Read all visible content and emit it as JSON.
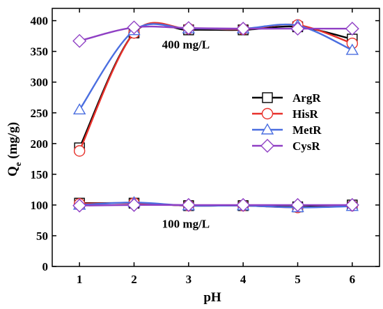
{
  "chart_data": {
    "type": "line",
    "xlabel": "pH",
    "ylabel": "Qe (mg/g)",
    "ylabel_main": "Q",
    "ylabel_sub": "e",
    "ylabel_unit": " (mg/g)",
    "xlim": [
      0.5,
      6.5
    ],
    "ylim": [
      0,
      420
    ],
    "xticks": [
      1,
      2,
      3,
      4,
      5,
      6
    ],
    "yticks": [
      0,
      50,
      100,
      150,
      200,
      250,
      300,
      350,
      400
    ],
    "grid": false,
    "legend_position": "right",
    "annotations": [
      {
        "text": "400 mg/L",
        "x": 2.95,
        "y": 355
      },
      {
        "text": "100 mg/L",
        "x": 2.95,
        "y": 63
      }
    ],
    "series": [
      {
        "name": "ArgR",
        "color": "#000000",
        "marker": "square",
        "x": [
          1,
          2,
          3,
          4,
          5,
          6
        ],
        "high": [
          193,
          380,
          385,
          385,
          390,
          370
        ],
        "low": [
          103,
          103,
          99,
          99,
          97,
          100
        ]
      },
      {
        "name": "HisR",
        "color": "#e8312b",
        "marker": "circle",
        "x": [
          1,
          2,
          3,
          4,
          5,
          6
        ],
        "high": [
          188,
          380,
          387,
          386,
          393,
          363
        ],
        "low": [
          102,
          103,
          99,
          99,
          96,
          99
        ]
      },
      {
        "name": "MetR",
        "color": "#4a6ee0",
        "marker": "triangle",
        "x": [
          1,
          2,
          3,
          4,
          5,
          6
        ],
        "high": [
          255,
          384,
          387,
          387,
          392,
          352
        ],
        "low": [
          100,
          104,
          99,
          99,
          96,
          98
        ]
      },
      {
        "name": "CysR",
        "color": "#8f3fc4",
        "marker": "diamond",
        "x": [
          1,
          2,
          3,
          4,
          5,
          6
        ],
        "high": [
          367,
          389,
          388,
          387,
          387,
          387
        ],
        "low": [
          99,
          100,
          100,
          100,
          100,
          100
        ]
      }
    ]
  }
}
